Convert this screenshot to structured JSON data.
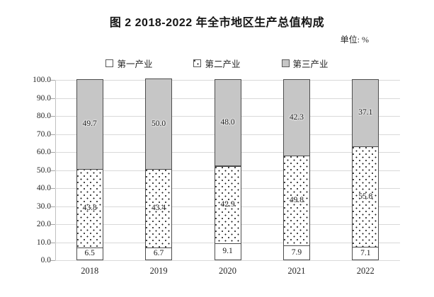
{
  "title": "图 2  2018-2022 年全市地区生产总值构成",
  "unit_label": "单位: %",
  "chart_data": {
    "type": "bar",
    "stacked": true,
    "title": "图 2  2018-2022 年全市地区生产总值构成",
    "unit": "%",
    "categories": [
      "2018",
      "2019",
      "2020",
      "2021",
      "2022"
    ],
    "series": [
      {
        "name": "第一产业",
        "pattern": "plain",
        "fill": "#ffffff",
        "values": [
          6.5,
          6.7,
          9.1,
          7.9,
          7.1
        ]
      },
      {
        "name": "第二产业",
        "pattern": "dots",
        "fill": "#ffffff",
        "values": [
          43.8,
          43.4,
          42.9,
          49.8,
          55.8
        ]
      },
      {
        "name": "第三产业",
        "pattern": "solid",
        "fill": "#c6c6c6",
        "values": [
          49.7,
          50.0,
          48.0,
          42.3,
          37.1
        ]
      }
    ],
    "ylim": [
      0,
      100
    ],
    "ytick_step": 10,
    "ytick_format_decimals": 1,
    "value_label_decimals": 1,
    "grid": true,
    "legend_position": "top",
    "colors": {
      "tertiary_fill": "#c6c6c6",
      "segment_border": "#4d4d4d",
      "gridline": "#d9d9d9",
      "text": "#262626"
    }
  }
}
